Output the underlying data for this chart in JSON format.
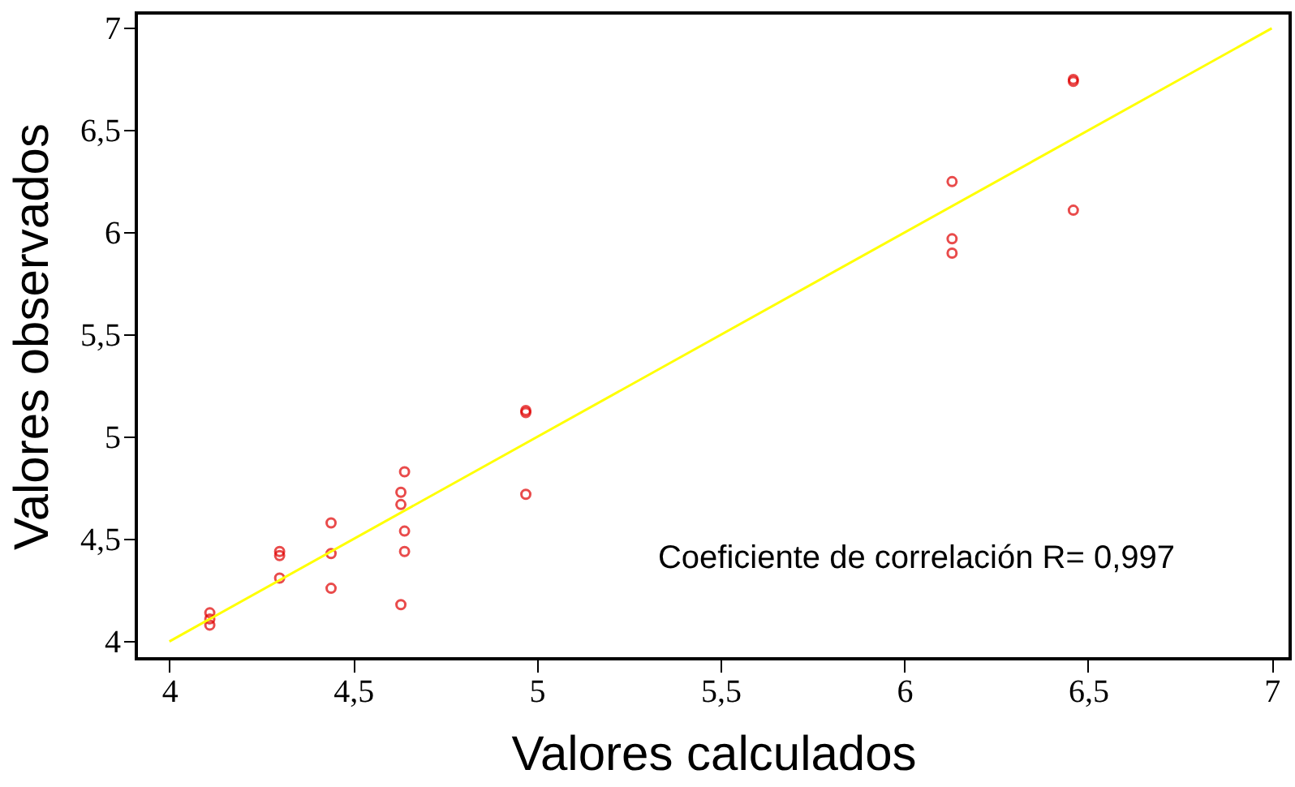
{
  "chart_data": {
    "type": "scatter",
    "xlabel": "Valores calculados",
    "ylabel": "Valores observados",
    "xlim": [
      3.91,
      7.05
    ],
    "ylim": [
      3.915,
      7.075
    ],
    "xticks": [
      {
        "value": 4,
        "label": "4"
      },
      {
        "value": 4.5,
        "label": "4,5"
      },
      {
        "value": 5,
        "label": "5"
      },
      {
        "value": 5.5,
        "label": "5,5"
      },
      {
        "value": 6,
        "label": "6"
      },
      {
        "value": 6.5,
        "label": "6,5"
      },
      {
        "value": 7,
        "label": "7"
      }
    ],
    "yticks": [
      {
        "value": 4,
        "label": "4"
      },
      {
        "value": 4.5,
        "label": "4,5"
      },
      {
        "value": 5,
        "label": "5"
      },
      {
        "value": 5.5,
        "label": "5,5"
      },
      {
        "value": 6,
        "label": "6"
      },
      {
        "value": 6.5,
        "label": "6,5"
      },
      {
        "value": 7,
        "label": "7"
      }
    ],
    "grid": false,
    "series": [
      {
        "marker": "circle",
        "color": "#e00000",
        "x": [
          4.11,
          4.11,
          4.11,
          4.3,
          4.3,
          4.3,
          4.44,
          4.44,
          4.44,
          4.63,
          4.63,
          4.63,
          4.64,
          4.64,
          4.64,
          4.97,
          4.97,
          4.97,
          6.13,
          6.13,
          6.13,
          6.46,
          6.46,
          6.46
        ],
        "values": [
          4.14,
          4.11,
          4.08,
          4.44,
          4.42,
          4.31,
          4.58,
          4.43,
          4.26,
          4.73,
          4.67,
          4.18,
          4.83,
          4.54,
          4.44,
          5.13,
          5.12,
          4.72,
          6.25,
          5.97,
          5.9,
          6.75,
          6.74,
          6.11
        ]
      },
      {
        "type": "line",
        "line_style": "solid",
        "color": "#ffff00",
        "x": [
          4,
          7
        ],
        "values": [
          4,
          7
        ]
      }
    ],
    "annotations": [
      "Coeficiente de correlación R= 0,997"
    ]
  }
}
